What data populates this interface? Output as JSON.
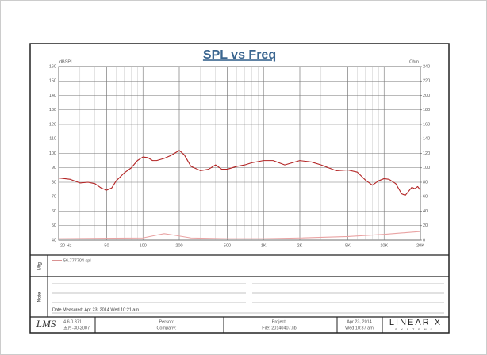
{
  "chart_data": {
    "type": "line",
    "title": "SPL vs Freq",
    "ylabel": "dBSPL",
    "y2label": "Ohm",
    "xscale": "log",
    "grid": true,
    "minor_grid": true,
    "xlim": [
      20,
      20000
    ],
    "xticks": [
      {
        "value": 20,
        "label": "20 Hz"
      },
      50,
      100,
      200,
      500,
      {
        "value": 1000,
        "label": "1K"
      },
      {
        "value": 2000,
        "label": "2K"
      },
      {
        "value": 5000,
        "label": "5K"
      },
      {
        "value": 10000,
        "label": "10K"
      },
      {
        "value": 20000,
        "label": "20K"
      }
    ],
    "ylim": [
      40,
      160
    ],
    "yticks": [
      40,
      50,
      60,
      70,
      80,
      90,
      100,
      110,
      120,
      130,
      140,
      150,
      160
    ],
    "y2lim": [
      0,
      240
    ],
    "y2ticks": [
      0,
      20,
      40,
      60,
      80,
      100,
      120,
      140,
      160,
      180,
      200,
      220,
      240
    ],
    "series": [
      {
        "name": "56.777704 spl",
        "color": "#b32424",
        "x": [
          20,
          25,
          30,
          35,
          40,
          45,
          50,
          55,
          60,
          70,
          80,
          90,
          100,
          110,
          120,
          130,
          150,
          170,
          200,
          220,
          250,
          300,
          350,
          400,
          450,
          500,
          600,
          700,
          800,
          1000,
          1200,
          1500,
          2000,
          2500,
          3000,
          4000,
          5000,
          6000,
          7000,
          8000,
          9000,
          10000,
          11000,
          12500,
          14000,
          15000,
          17000,
          18000,
          19000,
          20000
        ],
        "values": [
          83,
          82,
          79.5,
          80,
          79,
          76,
          74.5,
          76,
          81,
          86.5,
          90,
          95,
          97.5,
          97,
          95,
          95,
          96.5,
          98.5,
          102,
          99,
          91,
          88,
          89,
          92,
          89,
          89,
          91,
          92,
          93.5,
          95,
          95,
          92,
          95,
          94,
          92,
          88,
          88.5,
          87,
          81.5,
          78,
          81,
          82.5,
          82,
          79,
          72,
          71,
          76.5,
          75.5,
          77,
          74.5
        ]
      },
      {
        "color": "#e9a3a3",
        "axis": "y2",
        "x": [
          20,
          100,
          130,
          150,
          180,
          250,
          500,
          1000,
          2000,
          5000,
          10000,
          20000
        ],
        "values": [
          2,
          3,
          7,
          9,
          7,
          3,
          2,
          2,
          3,
          5,
          8,
          12
        ]
      }
    ]
  },
  "frame": {
    "mfg_label": "Mfg",
    "note_label": "Note",
    "date_measured": "Date Measured: Apr 23, 2014  Wed 10:21 am",
    "footer": {
      "logo": "LMS",
      "version": "4.6.0.371",
      "build_date": "五月-30-2007",
      "person": "Person:",
      "company": "Company:",
      "project": "Project:",
      "file": "File: 20140407.lib",
      "date": "Apr 23, 2014",
      "time": "Wed 10:37 am",
      "brand": "LINEAR X",
      "brand_sub": "SYSTEMS"
    }
  }
}
